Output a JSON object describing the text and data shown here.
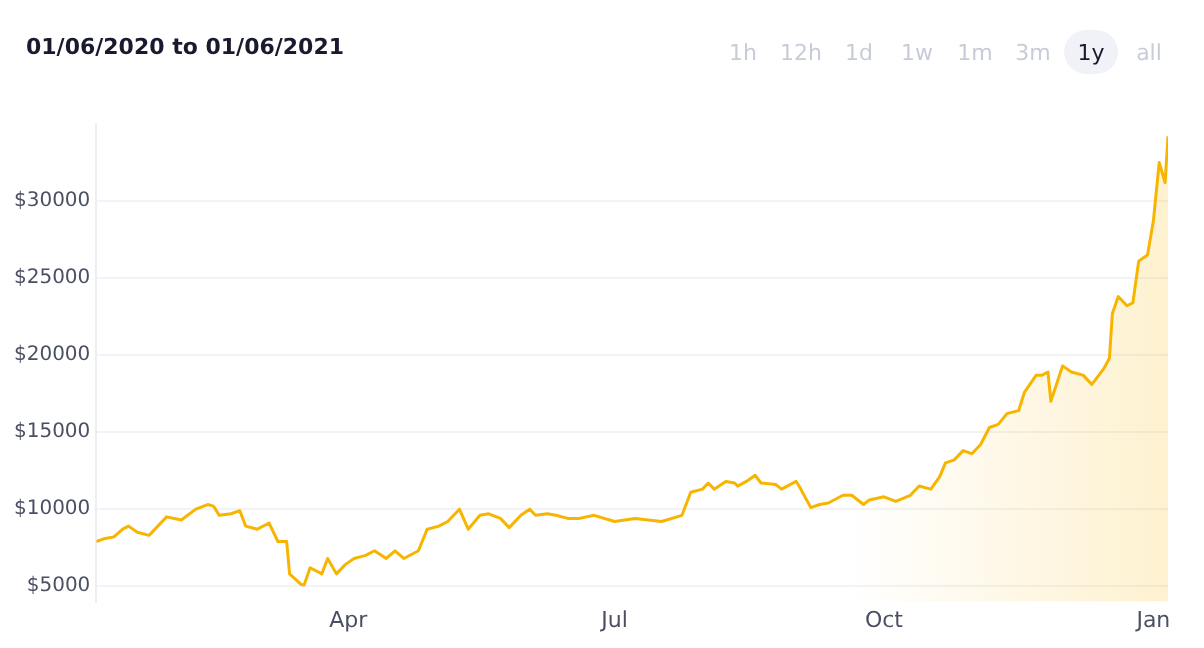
{
  "chart_data": {
    "type": "area",
    "title": "01/06/2020 to 01/06/2021",
    "annotations": [
      "1h",
      "12h",
      "1d",
      "1w",
      "1m",
      "3m",
      "1y",
      "all"
    ],
    "x": [
      "2020-01-06",
      "2020-01-09",
      "2020-01-12",
      "2020-01-15",
      "2020-01-17",
      "2020-01-20",
      "2020-01-24",
      "2020-01-30",
      "2020-02-04",
      "2020-02-09",
      "2020-02-13",
      "2020-02-15",
      "2020-02-17",
      "2020-02-21",
      "2020-02-24",
      "2020-02-26",
      "2020-03-01",
      "2020-03-05",
      "2020-03-08",
      "2020-03-11",
      "2020-03-12",
      "2020-03-16",
      "2020-03-17",
      "2020-03-19",
      "2020-03-23",
      "2020-03-25",
      "2020-03-28",
      "2020-03-31",
      "2020-04-03",
      "2020-04-07",
      "2020-04-10",
      "2020-04-14",
      "2020-04-17",
      "2020-04-20",
      "2020-04-25",
      "2020-04-28",
      "2020-05-02",
      "2020-05-05",
      "2020-05-09",
      "2020-05-12",
      "2020-05-16",
      "2020-05-19",
      "2020-05-23",
      "2020-05-26",
      "2020-05-30",
      "2020-06-02",
      "2020-06-04",
      "2020-06-08",
      "2020-06-11",
      "2020-06-15",
      "2020-06-19",
      "2020-06-24",
      "2020-07-01",
      "2020-07-08",
      "2020-07-17",
      "2020-07-24",
      "2020-07-27",
      "2020-07-31",
      "2020-08-02",
      "2020-08-04",
      "2020-08-08",
      "2020-08-11",
      "2020-08-12",
      "2020-08-15",
      "2020-08-18",
      "2020-08-20",
      "2020-08-25",
      "2020-08-27",
      "2020-09-01",
      "2020-09-02",
      "2020-09-06",
      "2020-09-09",
      "2020-09-12",
      "2020-09-17",
      "2020-09-20",
      "2020-09-24",
      "2020-09-26",
      "2020-10-01",
      "2020-10-05",
      "2020-10-10",
      "2020-10-13",
      "2020-10-17",
      "2020-10-20",
      "2020-10-22",
      "2020-10-25",
      "2020-10-28",
      "2020-10-31",
      "2020-11-03",
      "2020-11-06",
      "2020-11-09",
      "2020-11-12",
      "2020-11-16",
      "2020-11-18",
      "2020-11-22",
      "2020-11-24",
      "2020-11-26",
      "2020-11-27",
      "2020-12-01",
      "2020-12-04",
      "2020-12-08",
      "2020-12-11",
      "2020-12-15",
      "2020-12-17",
      "2020-12-18",
      "2020-12-20",
      "2020-12-23",
      "2020-12-25",
      "2020-12-27",
      "2020-12-30",
      "2021-01-01",
      "2021-01-03",
      "2021-01-05",
      "2021-01-06"
    ],
    "series": [
      {
        "color": "#f7b500",
        "values": [
          7900,
          8100,
          8200,
          8700,
          8900,
          8500,
          8300,
          9500,
          9300,
          10000,
          10300,
          10200,
          9600,
          9700,
          9900,
          8900,
          8700,
          9100,
          7900,
          7900,
          5800,
          5100,
          5100,
          6200,
          5800,
          6800,
          5800,
          6400,
          6800,
          7000,
          7300,
          6800,
          7300,
          6800,
          7300,
          8700,
          8900,
          9200,
          10000,
          8700,
          9600,
          9700,
          9400,
          8800,
          9600,
          10000,
          9600,
          9700,
          9600,
          9400,
          9400,
          9600,
          9200,
          9400,
          9200,
          9600,
          11100,
          11300,
          11700,
          11300,
          11800,
          11700,
          11500,
          11800,
          12200,
          11700,
          11600,
          11300,
          11800,
          11500,
          10100,
          10300,
          10400,
          10900,
          10900,
          10300,
          10600,
          10800,
          10500,
          10900,
          11500,
          11300,
          12100,
          13000,
          13200,
          13800,
          13600,
          14200,
          15300,
          15500,
          16200,
          16400,
          17600,
          18700,
          18700,
          18900,
          17000,
          19300,
          18900,
          18700,
          18100,
          19100,
          19800,
          22700,
          23800,
          23200,
          23400,
          26100,
          26500,
          28700,
          32500,
          31200,
          34200
        ]
      }
    ],
    "xlim": [
      "2020-01-06",
      "2021-01-06"
    ],
    "xticks": [
      {
        "value": "2020-04-01",
        "label": "Apr"
      },
      {
        "value": "2020-07-01",
        "label": "Jul"
      },
      {
        "value": "2020-10-01",
        "label": "Oct"
      },
      {
        "value": "2021-01-01",
        "label": "Jan"
      }
    ],
    "ylim": [
      4000,
      35000
    ],
    "yticks": [
      {
        "value": 5000,
        "label": "$5000"
      },
      {
        "value": 10000,
        "label": "$10000"
      },
      {
        "value": 15000,
        "label": "$15000"
      },
      {
        "value": 20000,
        "label": "$20000"
      },
      {
        "value": 25000,
        "label": "$25000"
      },
      {
        "value": 30000,
        "label": "$30000"
      }
    ],
    "grid": "y",
    "legend": false,
    "marker": "none",
    "line_style": "solid"
  }
}
